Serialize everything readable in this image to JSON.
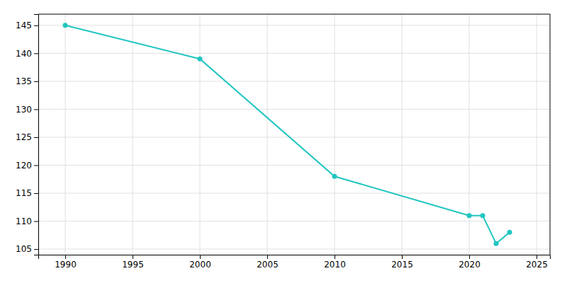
{
  "chart_data": {
    "type": "line",
    "x": [
      1990,
      2000,
      2010,
      2020,
      2021,
      2022,
      2023
    ],
    "values": [
      145,
      139,
      118,
      111,
      111,
      106,
      108
    ],
    "color": "#20C5C0",
    "marker": "circle",
    "xlim": [
      1988,
      2026
    ],
    "ylim": [
      104,
      147
    ],
    "xticks": [
      1990,
      1995,
      2000,
      2005,
      2010,
      2015,
      2020,
      2025
    ],
    "yticks": [
      105,
      110,
      115,
      120,
      125,
      130,
      135,
      140,
      145
    ],
    "grid": true
  }
}
